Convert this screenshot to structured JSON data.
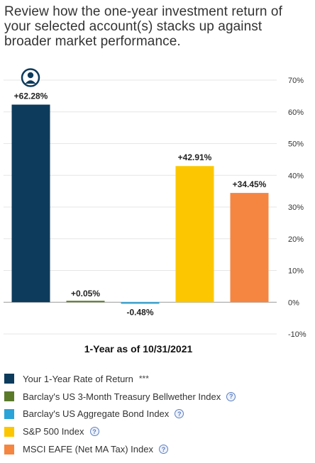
{
  "intro_text": "Review how the one-year investment return of your selected account(s) stacks up against broader market performance.",
  "chart_data": {
    "type": "bar",
    "title": "1-Year as of 10/31/2021",
    "categories": [
      "Your 1-Year Rate of Return",
      "Barclay's US 3-Month Treasury Bellwether Index",
      "Barclay's US Aggregate Bond Index",
      "S&P 500 Index",
      "MSCI EAFE (Net MA Tax) Index"
    ],
    "values": [
      62.28,
      0.05,
      -0.48,
      42.91,
      34.45
    ],
    "value_labels": [
      "+62.28%",
      "+0.05%",
      "-0.48%",
      "+42.91%",
      "+34.45%"
    ],
    "colors": [
      "#0d3b5c",
      "#5a7a2a",
      "#2aa3d8",
      "#fcc700",
      "#f58641"
    ],
    "ylim": [
      -10,
      70
    ],
    "yticks": [
      -10,
      0,
      10,
      20,
      30,
      40,
      50,
      60,
      70
    ],
    "ytick_labels": [
      "-10%",
      "0%",
      "10%",
      "20%",
      "30%",
      "40%",
      "50%",
      "60%",
      "70%"
    ],
    "grid": true,
    "yaxis_position": "right",
    "user_marker_icon": "user-avatar-icon"
  },
  "legend": [
    {
      "label": "Your 1-Year Rate of Return",
      "suffix": "***",
      "help": false,
      "color": "#0d3b5c"
    },
    {
      "label": "Barclay's US 3-Month Treasury Bellwether Index",
      "help": true,
      "help_glyph": "?",
      "color": "#5a7a2a"
    },
    {
      "label": "Barclay's US Aggregate Bond Index",
      "help": true,
      "help_glyph": "?",
      "color": "#2aa3d8"
    },
    {
      "label": "S&P 500 Index",
      "help": true,
      "help_glyph": "?",
      "color": "#fcc700"
    },
    {
      "label": "MSCI EAFE (Net MA Tax) Index",
      "help": true,
      "help_glyph": "?",
      "color": "#f58641"
    }
  ]
}
